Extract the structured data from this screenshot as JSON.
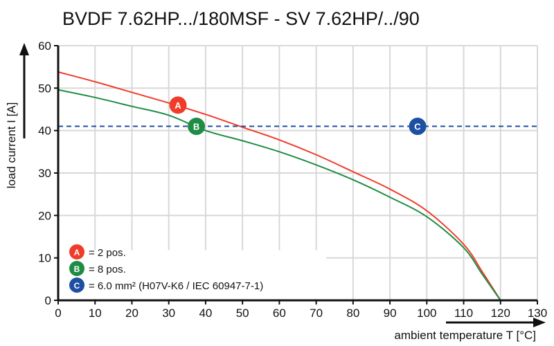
{
  "chart_data": {
    "type": "line",
    "title": "BVDF 7.62HP.../180MSF - SV 7.62HP/../90",
    "xlabel": "ambient temperature T [°C]",
    "ylabel": "load current I [A]",
    "xlim": [
      0,
      130
    ],
    "ylim": [
      0,
      60
    ],
    "xticks": [
      "0",
      "10",
      "20",
      "30",
      "40",
      "50",
      "60",
      "70",
      "80",
      "90",
      "100",
      "110",
      "120",
      "130"
    ],
    "yticks": [
      "0",
      "10",
      "20",
      "30",
      "40",
      "50",
      "60"
    ],
    "grid": true,
    "series": [
      {
        "marker": "A",
        "color": "#f03c2a",
        "x": [
          0,
          10,
          20,
          30,
          40,
          50,
          60,
          70,
          80,
          90,
          100,
          110,
          115,
          120
        ],
        "y": [
          53.8,
          51.5,
          49.0,
          46.5,
          43.8,
          40.8,
          37.8,
          34.3,
          30.3,
          26.2,
          21.1,
          13.2,
          6.8,
          0
        ]
      },
      {
        "marker": "B",
        "color": "#1f8c45",
        "x": [
          0,
          10,
          20,
          30,
          40,
          50,
          60,
          70,
          80,
          90,
          100,
          110,
          115,
          120
        ],
        "y": [
          49.6,
          47.8,
          45.7,
          43.6,
          40.0,
          37.6,
          35.0,
          31.9,
          28.4,
          24.3,
          19.7,
          12.4,
          6.2,
          0
        ]
      },
      {
        "marker": "C",
        "color": "#1d4fa3",
        "style": "dashed",
        "x": [
          0,
          130
        ],
        "y": [
          41,
          41
        ]
      }
    ],
    "markers": [
      {
        "label": "A",
        "x": 32.5,
        "y": 46,
        "color": "#f03c2a"
      },
      {
        "label": "B",
        "x": 37.5,
        "y": 41,
        "color": "#1f8c45"
      },
      {
        "label": "C",
        "x": 97.5,
        "y": 41,
        "color": "#1d4fa3"
      }
    ],
    "legend": {
      "placement": "bottom-left",
      "entries": [
        {
          "marker": "A",
          "text": "= 2 pos.",
          "color": "#f03c2a"
        },
        {
          "marker": "B",
          "text": "= 8 pos.",
          "color": "#1f8c45"
        },
        {
          "marker": "C",
          "text": "= 6.0 mm² (H07V-K6 / IEC 60947-7-1)",
          "color": "#1d4fa3"
        }
      ]
    }
  }
}
